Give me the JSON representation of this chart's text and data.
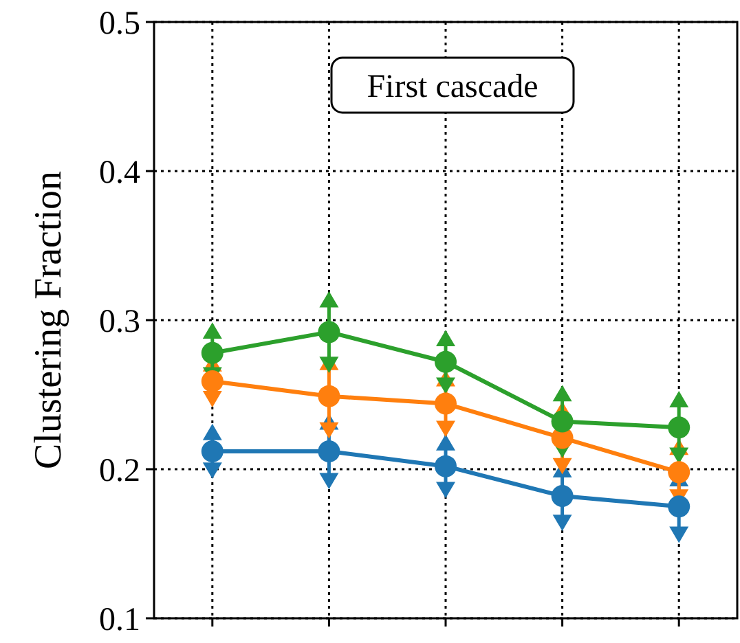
{
  "chart_data": {
    "type": "line",
    "ylabel": "Clustering Fraction",
    "annotations": [
      "First cascade"
    ],
    "categories": [
      null,
      null,
      null,
      null,
      null
    ],
    "ylim": [
      0.1,
      0.5
    ],
    "yticks": [
      0.1,
      0.2,
      0.3,
      0.4,
      0.5
    ],
    "grid": true,
    "marker": "circle",
    "line_style": "solid",
    "series": [
      {
        "color": "#1f77b4",
        "values": [
          0.212,
          0.212,
          0.202,
          0.182,
          0.175
        ],
        "errors": [
          0.013,
          0.02,
          0.016,
          0.018,
          0.019
        ]
      },
      {
        "color": "#ff7f0e",
        "values": [
          0.259,
          0.249,
          0.244,
          0.221,
          0.198
        ],
        "errors": [
          0.012,
          0.023,
          0.017,
          0.019,
          0.017
        ]
      },
      {
        "color": "#2ca02c",
        "values": [
          0.278,
          0.292,
          0.272,
          0.232,
          0.228
        ],
        "errors": [
          0.015,
          0.022,
          0.016,
          0.019,
          0.019
        ]
      }
    ]
  }
}
